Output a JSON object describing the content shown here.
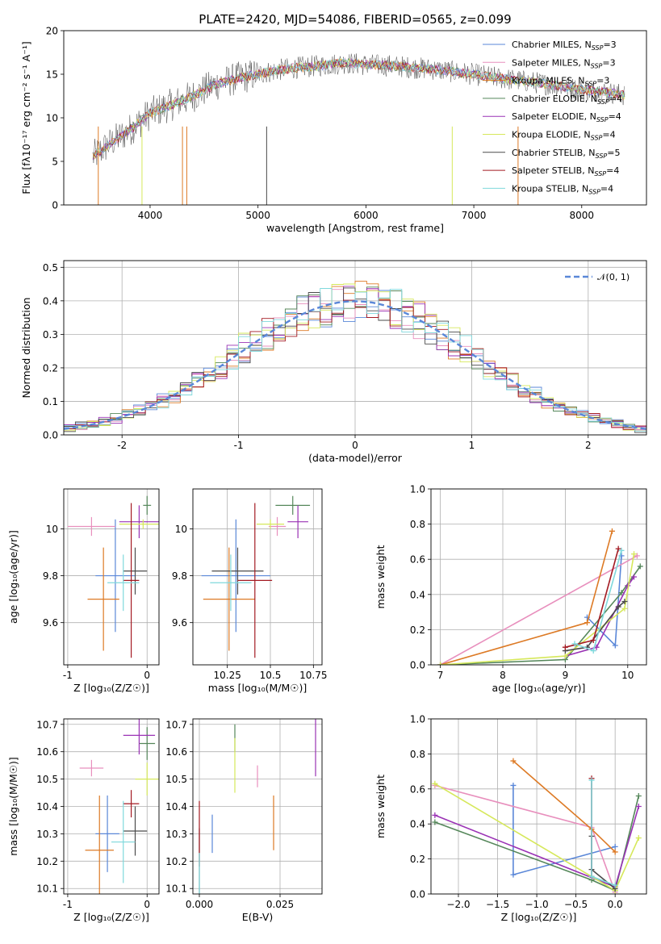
{
  "figure": {
    "title": "PLATE=2420, MJD=54086, FIBERID=0565, z=0.099"
  },
  "series": [
    {
      "name": "Chabrier MILES, N",
      "sub": "SSP",
      "suffix": "=3",
      "color": "#5a87d8"
    },
    {
      "name": "Salpeter MILES, N",
      "sub": "SSP",
      "suffix": "=3",
      "color": "#e88fbd"
    },
    {
      "name": "Kroupa MILES, N",
      "sub": "SSP",
      "suffix": "=3",
      "color": "#dd7a25"
    },
    {
      "name": "Chabrier ELODIE, N",
      "sub": "SSP",
      "suffix": "=4",
      "color": "#55875a"
    },
    {
      "name": "Salpeter ELODIE, N",
      "sub": "SSP",
      "suffix": "=4",
      "color": "#9a32b5"
    },
    {
      "name": "Kroupa ELODIE, N",
      "sub": "SSP",
      "suffix": "=4",
      "color": "#d6e85b"
    },
    {
      "name": "Chabrier STELIB, N",
      "sub": "SSP",
      "suffix": "=5",
      "color": "#4a4a4a"
    },
    {
      "name": "Salpeter STELIB, N",
      "sub": "SSP",
      "suffix": "=4",
      "color": "#a31a22"
    },
    {
      "name": "Kroupa STELIB, N",
      "sub": "SSP",
      "suffix": "=4",
      "color": "#7fd8dc"
    }
  ],
  "chart_data": [
    {
      "id": "spectrum",
      "type": "line",
      "xlabel": "wavelength [Angstrom, rest frame]",
      "ylabel": "Flux [fλ10⁻¹⁷ erg cm⁻² s⁻¹ A⁻¹]",
      "xlim": [
        3200,
        8600
      ],
      "ylim": [
        0,
        20
      ],
      "xticks": [
        4000,
        5000,
        6000,
        7000,
        8000
      ],
      "yticks": [
        0,
        5,
        10,
        15,
        20
      ],
      "x": [
        3470,
        3600,
        3800,
        4000,
        4200,
        4400,
        4600,
        4800,
        5000,
        5200,
        5400,
        5600,
        5800,
        6000,
        6200,
        6400,
        6600,
        6800,
        7000,
        7200,
        7400,
        7600,
        7800,
        8000,
        8200,
        8400
      ],
      "y": [
        5.5,
        6.8,
        8.5,
        10.5,
        11.5,
        12.5,
        13.8,
        14.5,
        15.0,
        15.5,
        15.8,
        16.0,
        16.3,
        16.1,
        16.0,
        15.8,
        15.6,
        15.3,
        15.0,
        14.6,
        14.3,
        14.0,
        13.6,
        13.2,
        13.0,
        12.6
      ],
      "legend": "upper right"
    },
    {
      "id": "residuals",
      "type": "histogram",
      "xlabel": "(data-model)/error",
      "ylabel": "Normed distribution",
      "xlim": [
        -2.5,
        2.5
      ],
      "ylim": [
        0,
        0.52
      ],
      "xticks": [
        -2,
        -1,
        0,
        1,
        2
      ],
      "yticks": [
        0.0,
        0.1,
        0.2,
        0.3,
        0.4,
        0.5
      ],
      "curve_label": "𝒩(0, 1)",
      "curve_color": "#5a87d8",
      "bin_width": 0.1,
      "legend": "upper right"
    },
    {
      "id": "age_vs_Z",
      "type": "errorbar",
      "xlabel": "Z [log₁₀(Z/Z☉)]",
      "ylabel": "age  [log₁₀(age/yr)]",
      "xlim": [
        -1.05,
        0.15
      ],
      "ylim": [
        9.42,
        10.17
      ],
      "xticks": [
        -1,
        0
      ],
      "yticks": [
        9.6,
        9.8,
        10.0
      ],
      "points": [
        {
          "s": 0,
          "x": -0.4,
          "xe": 0.25,
          "y": 9.8,
          "ye": 0.24
        },
        {
          "s": 1,
          "x": -0.7,
          "xe": 0.3,
          "y": 10.01,
          "ye": 0.04
        },
        {
          "s": 2,
          "x": -0.55,
          "xe": 0.2,
          "y": 9.7,
          "ye": 0.22
        },
        {
          "s": 3,
          "x": 0.0,
          "xe": 0.05,
          "y": 10.1,
          "ye": 0.04
        },
        {
          "s": 4,
          "x": -0.1,
          "xe": 0.25,
          "y": 10.03,
          "ye": 0.07
        },
        {
          "s": 5,
          "x": -0.05,
          "xe": 0.3,
          "y": 10.02,
          "ye": 0.02
        },
        {
          "s": 6,
          "x": -0.15,
          "xe": 0.15,
          "y": 9.82,
          "ye": 0.1
        },
        {
          "s": 7,
          "x": -0.2,
          "xe": 0.1,
          "y": 9.78,
          "ye": 0.33
        },
        {
          "s": 8,
          "x": -0.3,
          "xe": 0.2,
          "y": 9.77,
          "ye": 0.12
        }
      ]
    },
    {
      "id": "age_vs_mass",
      "type": "errorbar",
      "xlabel": "mass [log₁₀(M/M☉)]",
      "ylabel": "",
      "xlim": [
        10.05,
        10.8
      ],
      "ylim": [
        9.42,
        10.17
      ],
      "xticks": [
        10.25,
        10.5,
        10.75
      ],
      "yticks": [
        9.6,
        9.8,
        10.0
      ],
      "points": [
        {
          "s": 0,
          "x": 10.3,
          "xe": 0.2,
          "y": 9.8,
          "ye": 0.24
        },
        {
          "s": 1,
          "x": 10.54,
          "xe": 0.05,
          "y": 10.01,
          "ye": 0.04
        },
        {
          "s": 2,
          "x": 10.26,
          "xe": 0.15,
          "y": 9.7,
          "ye": 0.22
        },
        {
          "s": 3,
          "x": 10.63,
          "xe": 0.1,
          "y": 10.1,
          "ye": 0.04
        },
        {
          "s": 4,
          "x": 10.66,
          "xe": 0.06,
          "y": 10.03,
          "ye": 0.07
        },
        {
          "s": 5,
          "x": 10.5,
          "xe": 0.08,
          "y": 10.02,
          "ye": 0.02
        },
        {
          "s": 6,
          "x": 10.31,
          "xe": 0.15,
          "y": 9.82,
          "ye": 0.1
        },
        {
          "s": 7,
          "x": 10.41,
          "xe": 0.1,
          "y": 9.78,
          "ye": 0.33
        },
        {
          "s": 8,
          "x": 10.27,
          "xe": 0.12,
          "y": 9.77,
          "ye": 0.12
        }
      ]
    },
    {
      "id": "mass_weight_vs_age",
      "type": "line",
      "xlabel": "age  [log₁₀(age/yr)]",
      "ylabel": "mass weight",
      "xlim": [
        6.85,
        10.3
      ],
      "ylim": [
        0,
        1.0
      ],
      "xticks": [
        7,
        8,
        9,
        10
      ],
      "yticks": [
        0.0,
        0.2,
        0.4,
        0.6,
        0.8,
        1.0
      ],
      "series": [
        {
          "s": 0,
          "x": [
            9.35,
            9.8,
            9.9
          ],
          "y": [
            0.27,
            0.11,
            0.62
          ]
        },
        {
          "s": 1,
          "x": [
            7.0,
            10.15
          ],
          "y": [
            0.0,
            0.62
          ]
        },
        {
          "s": 2,
          "x": [
            7.0,
            9.35,
            9.75
          ],
          "y": [
            0.0,
            0.24,
            0.76
          ]
        },
        {
          "s": 3,
          "x": [
            7.0,
            9.0,
            9.9,
            10.2
          ],
          "y": [
            0.0,
            0.03,
            0.41,
            0.56
          ]
        },
        {
          "s": 4,
          "x": [
            9.0,
            9.5,
            10.0,
            10.1
          ],
          "y": [
            0.05,
            0.1,
            0.45,
            0.5
          ]
        },
        {
          "s": 5,
          "x": [
            7.0,
            9.0,
            9.95,
            10.1
          ],
          "y": [
            0.0,
            0.05,
            0.32,
            0.63
          ]
        },
        {
          "s": 6,
          "x": [
            9.0,
            9.35,
            9.85,
            9.95
          ],
          "y": [
            0.08,
            0.1,
            0.33,
            0.36
          ]
        },
        {
          "s": 7,
          "x": [
            9.0,
            9.45,
            9.85
          ],
          "y": [
            0.1,
            0.14,
            0.66
          ]
        },
        {
          "s": 8,
          "x": [
            9.15,
            9.45,
            9.9
          ],
          "y": [
            0.12,
            0.08,
            0.65
          ]
        }
      ]
    },
    {
      "id": "mass_vs_Z",
      "type": "errorbar",
      "xlabel": "Z [log₁₀(Z/Z☉)]",
      "ylabel": "mass [log₁₀(M/M☉)]",
      "xlim": [
        -1.05,
        0.15
      ],
      "ylim": [
        10.08,
        10.72
      ],
      "xticks": [
        -1,
        0
      ],
      "yticks": [
        10.1,
        10.2,
        10.3,
        10.4,
        10.5,
        10.6,
        10.7
      ],
      "points": [
        {
          "s": 0,
          "x": -0.5,
          "xe": 0.15,
          "y": 10.3,
          "ye": 0.14
        },
        {
          "s": 1,
          "x": -0.7,
          "xe": 0.15,
          "y": 10.54,
          "ye": 0.03
        },
        {
          "s": 2,
          "x": -0.6,
          "xe": 0.18,
          "y": 10.24,
          "ye": 0.2
        },
        {
          "s": 3,
          "x": 0.0,
          "xe": 0.1,
          "y": 10.63,
          "ye": 0.06
        },
        {
          "s": 4,
          "x": -0.1,
          "xe": 0.2,
          "y": 10.66,
          "ye": 0.07
        },
        {
          "s": 5,
          "x": 0.0,
          "xe": 0.15,
          "y": 10.5,
          "ye": 0.06
        },
        {
          "s": 6,
          "x": -0.15,
          "xe": 0.15,
          "y": 10.31,
          "ye": 0.09
        },
        {
          "s": 7,
          "x": -0.2,
          "xe": 0.1,
          "y": 10.41,
          "ye": 0.05
        },
        {
          "s": 8,
          "x": -0.3,
          "xe": 0.15,
          "y": 10.27,
          "ye": 0.15
        }
      ]
    },
    {
      "id": "mass_vs_EBV",
      "type": "errorbar",
      "xlabel": "E(B-V)",
      "ylabel": "",
      "xlim": [
        -0.002,
        0.038
      ],
      "ylim": [
        10.08,
        10.72
      ],
      "xticks": [
        0.0,
        0.025
      ],
      "xticklabels": [
        "0.000",
        "0.025"
      ],
      "yticks": [
        10.1,
        10.2,
        10.3,
        10.4,
        10.5,
        10.6,
        10.7
      ],
      "points": [
        {
          "s": 0,
          "x": 0.004,
          "xe": 0,
          "y": 10.3,
          "ye": 0.07
        },
        {
          "s": 1,
          "x": 0.018,
          "xe": 0,
          "y": 10.51,
          "ye": 0.04
        },
        {
          "s": 2,
          "x": 0.023,
          "xe": 0,
          "y": 10.34,
          "ye": 0.1
        },
        {
          "s": 3,
          "x": 0.011,
          "xe": 0,
          "y": 10.65,
          "ye": 0.05
        },
        {
          "s": 4,
          "x": 0.036,
          "xe": 0,
          "y": 10.62,
          "ye": 0.11
        },
        {
          "s": 5,
          "x": 0.011,
          "xe": 0,
          "y": 10.55,
          "ye": 0.1
        },
        {
          "s": 6,
          "x": 0.0,
          "xe": 0,
          "y": 10.2,
          "ye": 0.12
        },
        {
          "s": 7,
          "x": 0.0,
          "xe": 0,
          "y": 10.3,
          "ye": 0.12
        },
        {
          "s": 8,
          "x": 0.0,
          "xe": 0,
          "y": 10.15,
          "ye": 0.08
        }
      ]
    },
    {
      "id": "mass_weight_vs_Z",
      "type": "line",
      "xlabel": "Z [log₁₀(Z/Z☉)]",
      "ylabel": "mass weight",
      "xlim": [
        -2.35,
        0.4
      ],
      "ylim": [
        0,
        1.0
      ],
      "xticks": [
        -2.0,
        -1.5,
        -1.0,
        -0.5,
        0.0
      ],
      "xticklabels": [
        "−2.0",
        "−1.5",
        "−1.0",
        "−0.5",
        "0.0"
      ],
      "yticks": [
        0.0,
        0.2,
        0.4,
        0.6,
        0.8,
        1.0
      ],
      "series": [
        {
          "s": 0,
          "x": [
            -1.3,
            -1.3,
            0.0
          ],
          "y": [
            0.62,
            0.11,
            0.27
          ]
        },
        {
          "s": 1,
          "x": [
            -2.3,
            -0.3,
            0.0
          ],
          "y": [
            0.62,
            0.38,
            0.01
          ]
        },
        {
          "s": 2,
          "x": [
            -1.3,
            -0.3,
            0.0
          ],
          "y": [
            0.76,
            0.37,
            0.24
          ]
        },
        {
          "s": 3,
          "x": [
            -2.3,
            -0.3,
            0.0,
            0.3
          ],
          "y": [
            0.41,
            0.08,
            0.02,
            0.56
          ]
        },
        {
          "s": 4,
          "x": [
            -2.3,
            0.0,
            0.3
          ],
          "y": [
            0.45,
            0.04,
            0.5
          ]
        },
        {
          "s": 5,
          "x": [
            -2.3,
            0.0,
            0.3
          ],
          "y": [
            0.63,
            0.02,
            0.32
          ]
        },
        {
          "s": 6,
          "x": [
            -0.3,
            -0.3,
            0.0
          ],
          "y": [
            0.33,
            0.14,
            0.03
          ]
        },
        {
          "s": 7,
          "x": [
            -0.3,
            -0.3
          ],
          "y": [
            0.66,
            0.1
          ]
        },
        {
          "s": 8,
          "x": [
            -0.3,
            -0.3,
            0.0
          ],
          "y": [
            0.65,
            0.1,
            0.05
          ]
        }
      ]
    }
  ]
}
